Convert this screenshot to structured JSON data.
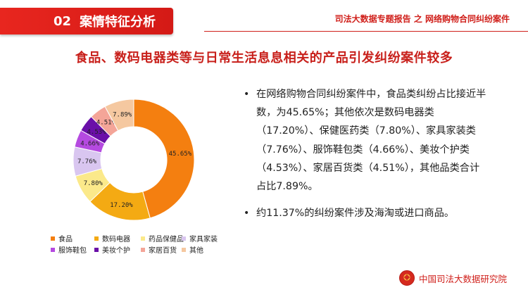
{
  "header": {
    "section_number": "02",
    "section_title": "案情特征分析",
    "report_title": "司法大数据专题报告 之 网络购物合同纠纷案件"
  },
  "slide_title": "食品、数码电器类等与日常生活息息相关的产品引发纠纷案件较多",
  "chart_data": {
    "type": "pie",
    "donut": true,
    "title": "",
    "categories": [
      "食品",
      "数码电器",
      "药品保健品",
      "家具家装",
      "服饰鞋包",
      "美妆个护",
      "家居百货",
      "其他"
    ],
    "values": [
      45.65,
      17.2,
      7.8,
      7.76,
      4.66,
      4.53,
      4.51,
      7.89
    ],
    "value_labels": [
      "45.65%",
      "17.20%",
      "7.80%",
      "7.76%",
      "4.66%",
      "4.53%",
      "4.51%",
      "7.89%"
    ],
    "colors": [
      "#f47f10",
      "#f4aa13",
      "#fbe98a",
      "#d9c6f0",
      "#b54ae0",
      "#6a0fa8",
      "#f4a598",
      "#f5c8a0"
    ],
    "legend_position": "bottom"
  },
  "bullets": [
    "在网络购物合同纠纷案件中，食品类纠纷占比接近半数，为45.65%；其他依次是数码电器类（17.20%）、保健医药类（7.80%）、家具家装类（7.76%）、服饰鞋包类（4.66%）、美妆个护类（4.53%）、家居百货类（4.51%），其他品类合计占比7.89%。",
    "约11.37%的纠纷案件涉及海淘或进口商品。"
  ],
  "footer": {
    "org_name": "中国司法大数据研究院",
    "logo_icon": "national-emblem-icon"
  }
}
